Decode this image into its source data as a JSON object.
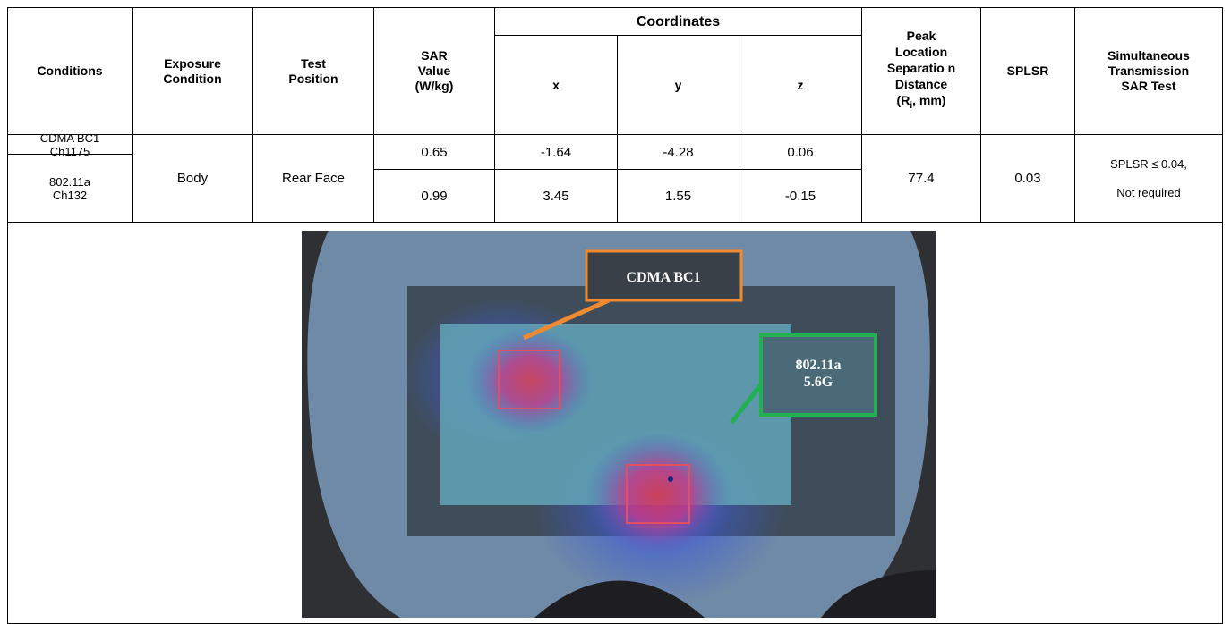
{
  "table": {
    "header": {
      "conditions": "Conditions",
      "exposure": "Exposure Condition",
      "test_position": "Test Position",
      "sar": "SAR Value (W/kg)",
      "coordinates": "Coordinates",
      "x": "x",
      "y": "y",
      "z": "z",
      "peak": "Peak",
      "separation": "Location Separatio n Distance",
      "separation_unit": [
        "(R",
        "i",
        ", mm)"
      ],
      "splsr": "SPLSR",
      "simultaneous": "Simultaneous Transmission SAR Test"
    },
    "rows": [
      {
        "condition": "CDMA BC1 Ch1175",
        "sar": 0.65,
        "x": -1.64,
        "y": -4.28,
        "z": 0.06
      },
      {
        "condition": "802.11a Ch132",
        "sar": 0.99,
        "x": 3.45,
        "y": 1.55,
        "z": -0.15
      }
    ],
    "exposure": "Body",
    "test_position": "Rear Face",
    "separation": 77.4,
    "splsr": 0.03,
    "simultaneous": [
      "SPLSR ≤ 0.04,",
      "Not required"
    ]
  },
  "figure": {
    "labels": [
      "CDMA BC1",
      [
        "802.11a",
        "5.6G"
      ]
    ]
  }
}
